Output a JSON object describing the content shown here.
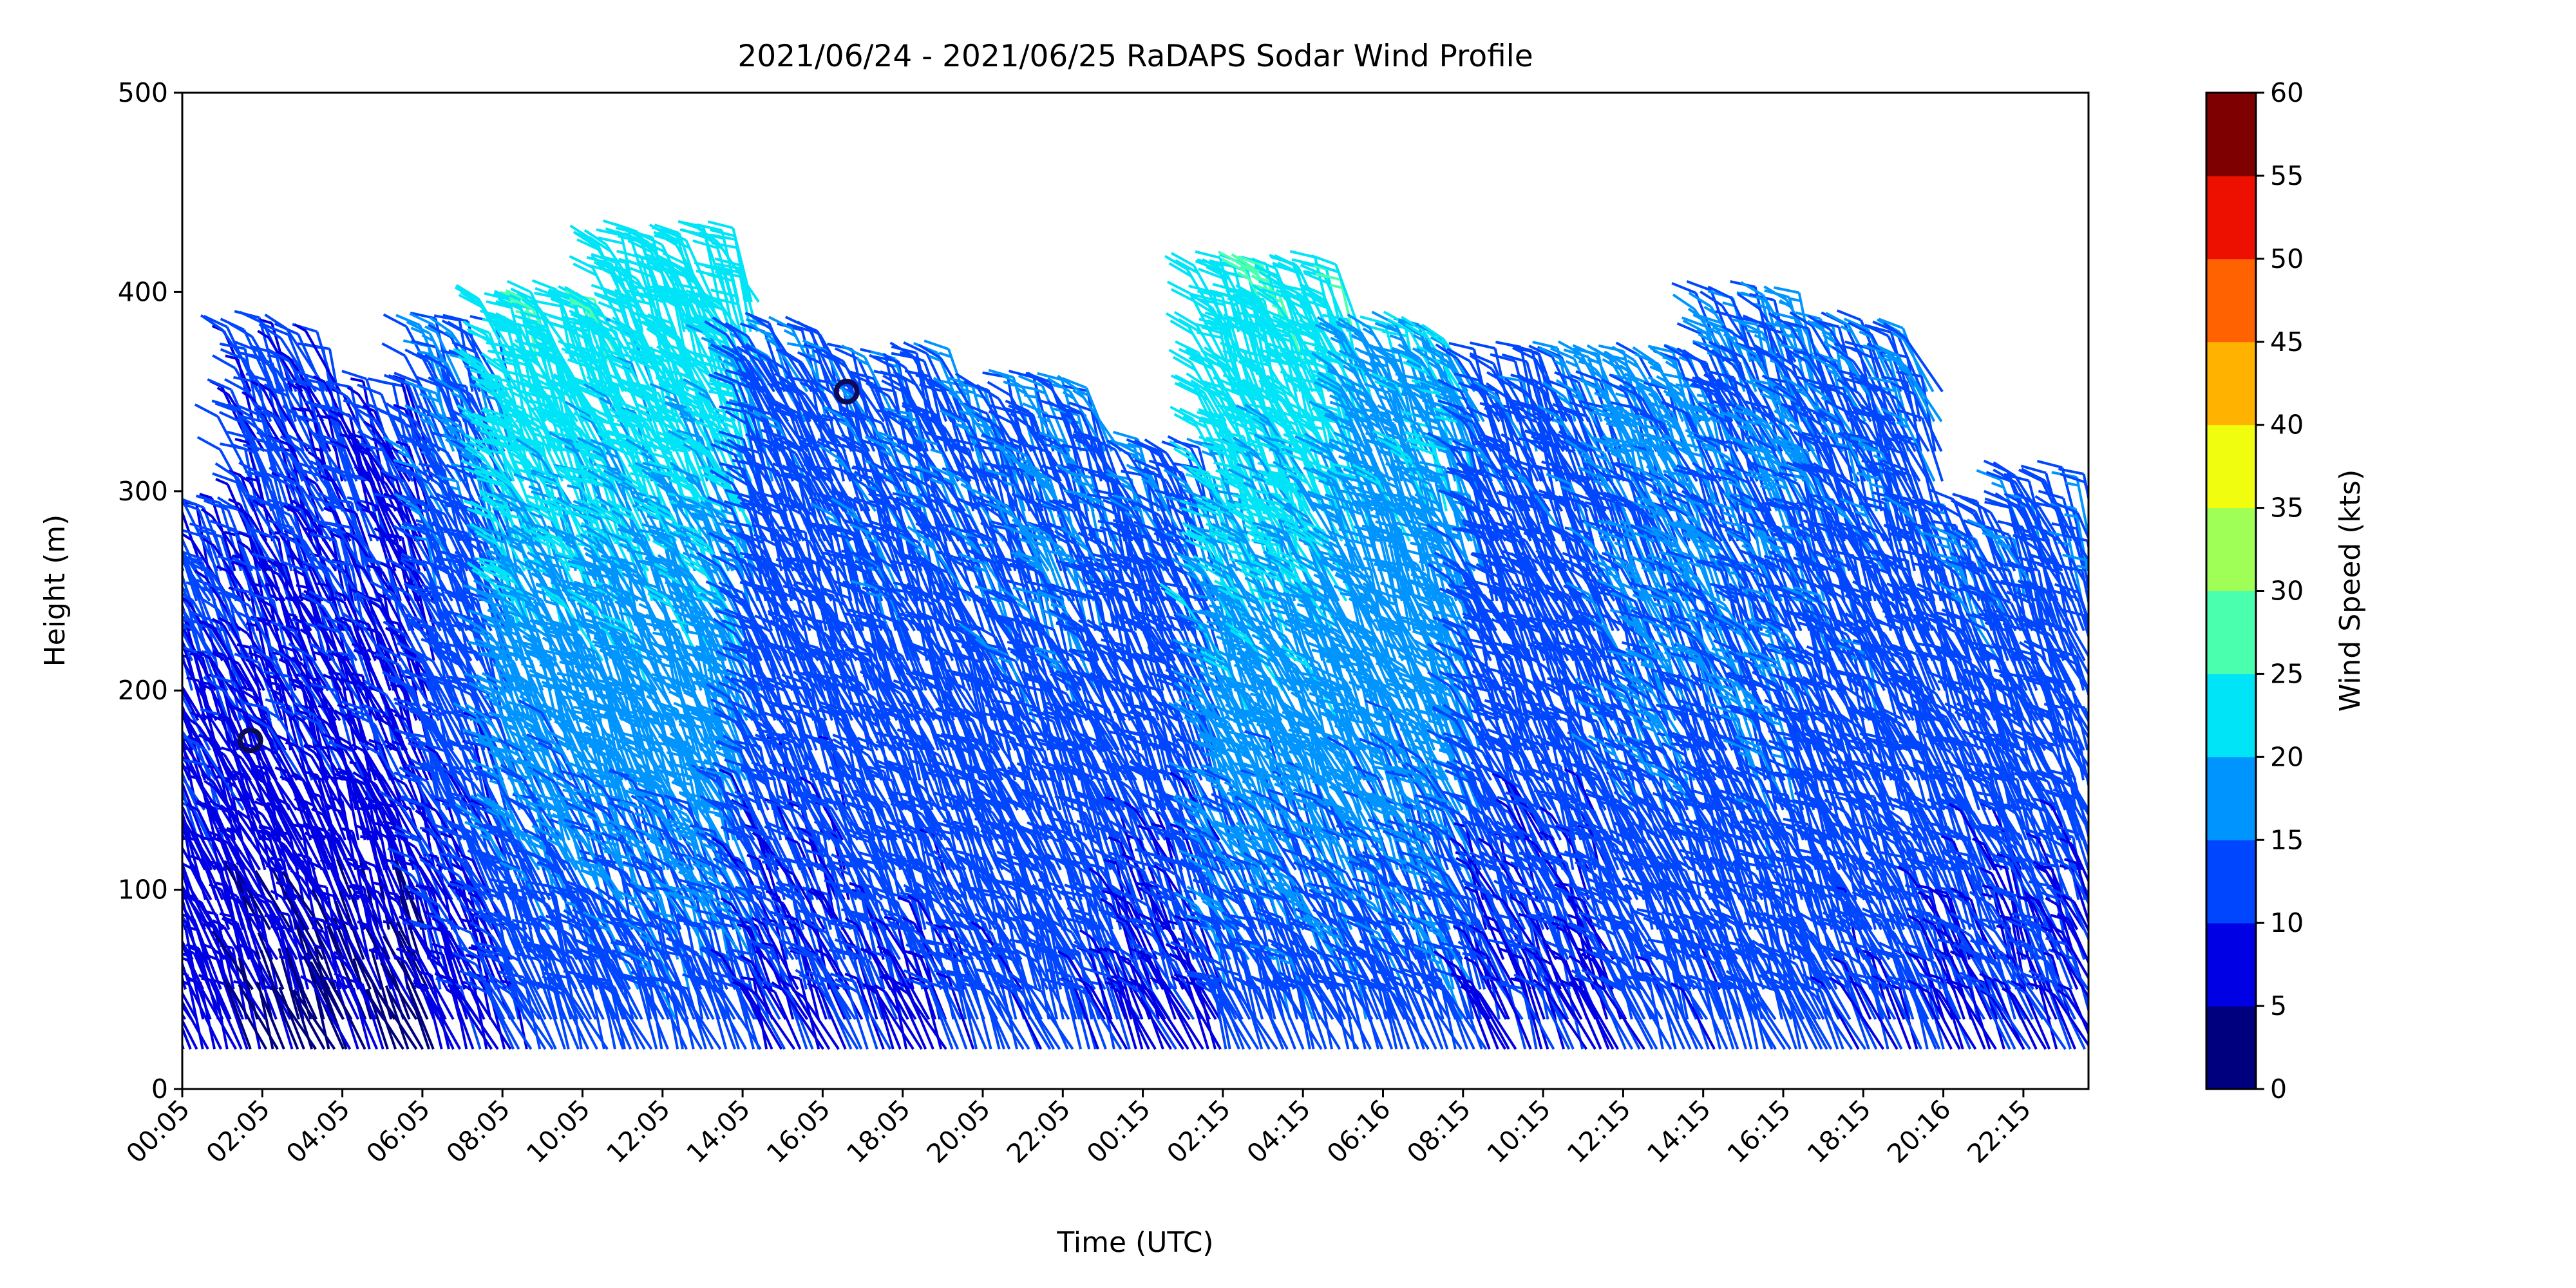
{
  "chart_data": {
    "type": "wind-barb-profile",
    "title": "2021/06/24 - 2021/06/25 RaDAPS Sodar Wind Profile",
    "xlabel": "Time (UTC)",
    "ylabel": "Height (m)",
    "ylim": [
      0,
      500
    ],
    "y_ticks": [
      0,
      100,
      200,
      300,
      400,
      500
    ],
    "x_tick_labels": [
      "00:05",
      "02:05",
      "04:05",
      "06:05",
      "08:05",
      "10:05",
      "12:05",
      "14:05",
      "16:05",
      "18:05",
      "20:05",
      "22:05",
      "00:15",
      "02:15",
      "04:15",
      "06:16",
      "08:15",
      "10:15",
      "12:15",
      "14:15",
      "16:15",
      "18:15",
      "20:16",
      "22:15"
    ],
    "colorbar": {
      "label": "Wind Speed (kts)",
      "ticks": [
        0,
        5,
        10,
        15,
        20,
        25,
        30,
        35,
        40,
        45,
        50,
        55,
        60
      ],
      "colors": [
        "#00007f",
        "#0000e5",
        "#0046ff",
        "#0094ff",
        "#00e4f7",
        "#4affad",
        "#9fff57",
        "#f0fd0f",
        "#ffb200",
        "#ff6200",
        "#ed0f00",
        "#7f0000"
      ]
    },
    "segments": [
      {
        "t0": 0.0,
        "t1": 1.7,
        "top": 260,
        "low_speed": 7,
        "mid_speed": 9,
        "high_speed": 11
      },
      {
        "t0": 1.7,
        "t1": 4.0,
        "top": 355,
        "low_speed": 3,
        "mid_speed": 9,
        "high_speed": 11
      },
      {
        "t0": 4.0,
        "t1": 6.4,
        "top": 320,
        "low_speed": 3,
        "mid_speed": 9,
        "high_speed": 10
      },
      {
        "t0": 6.4,
        "t1": 8.2,
        "top": 360,
        "low_speed": 8,
        "mid_speed": 12,
        "high_speed": 15
      },
      {
        "t0": 8.2,
        "t1": 11.0,
        "top": 370,
        "low_speed": 11,
        "mid_speed": 17,
        "high_speed": 24
      },
      {
        "t0": 11.0,
        "t1": 14.4,
        "top": 400,
        "low_speed": 12,
        "mid_speed": 18,
        "high_speed": 23
      },
      {
        "t0": 14.4,
        "t1": 16.8,
        "top": 360,
        "low_speed": 9,
        "mid_speed": 12,
        "high_speed": 14
      },
      {
        "t0": 16.8,
        "t1": 20.0,
        "top": 335,
        "low_speed": 10,
        "mid_speed": 13,
        "high_speed": 14
      },
      {
        "t0": 20.0,
        "t1": 23.5,
        "top": 330,
        "low_speed": 11,
        "mid_speed": 13,
        "high_speed": 15
      },
      {
        "t0": 23.5,
        "t1": 26.0,
        "top": 300,
        "low_speed": 9,
        "mid_speed": 12,
        "high_speed": 14
      },
      {
        "t0": 26.0,
        "t1": 29.5,
        "top": 390,
        "low_speed": 12,
        "mid_speed": 18,
        "high_speed": 24
      },
      {
        "t0": 29.5,
        "t1": 32.5,
        "top": 350,
        "low_speed": 12,
        "mid_speed": 17,
        "high_speed": 19
      },
      {
        "t0": 32.5,
        "t1": 36.0,
        "top": 340,
        "low_speed": 9,
        "mid_speed": 12,
        "high_speed": 14
      },
      {
        "t0": 36.0,
        "t1": 38.5,
        "top": 340,
        "low_speed": 11,
        "mid_speed": 14,
        "high_speed": 16
      },
      {
        "t0": 38.5,
        "t1": 41.0,
        "top": 370,
        "low_speed": 12,
        "mid_speed": 14,
        "high_speed": 15
      },
      {
        "t0": 41.0,
        "t1": 44.0,
        "top": 355,
        "low_speed": 11,
        "mid_speed": 13,
        "high_speed": 14
      },
      {
        "t0": 44.0,
        "t1": 46.0,
        "top": 260,
        "low_speed": 9,
        "mid_speed": 12,
        "high_speed": 14
      },
      {
        "t0": 46.0,
        "t1": 48.0,
        "top": 280,
        "low_speed": 9,
        "mid_speed": 12,
        "high_speed": 14
      }
    ]
  }
}
